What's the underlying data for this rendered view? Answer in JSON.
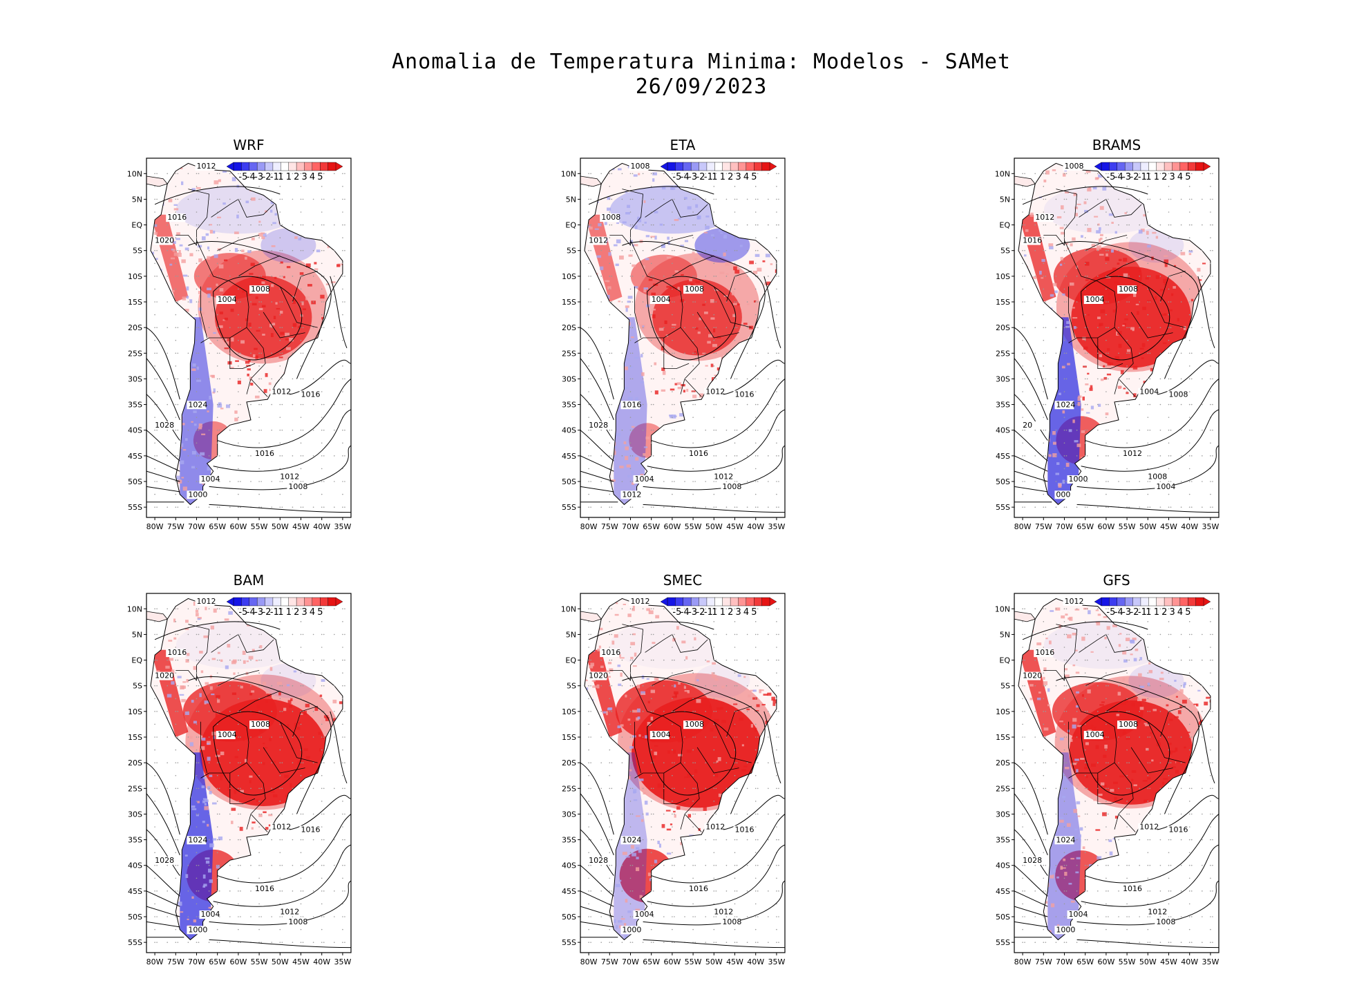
{
  "title": {
    "line1": "Anomalia de Temperatura Minima: Modelos - SAMet",
    "line2": "26/09/2023"
  },
  "axes": {
    "lat_labels": [
      "10N",
      "5N",
      "EQ",
      "5S",
      "10S",
      "15S",
      "20S",
      "25S",
      "30S",
      "35S",
      "40S",
      "45S",
      "50S",
      "55S"
    ],
    "lon_labels": [
      "80W",
      "75W",
      "70W",
      "65W",
      "60W",
      "55W",
      "50W",
      "45W",
      "40W",
      "35W"
    ]
  },
  "colorbar": {
    "labels": [
      "-5",
      "-4",
      "-3",
      "-2",
      "-1",
      "1",
      "1",
      "2",
      "3",
      "4",
      "5"
    ],
    "colors": [
      "#1515e6",
      "#3d3df0",
      "#6666f2",
      "#9a9af5",
      "#c8c8fa",
      "#eeeeff",
      "#ffffff",
      "#ffe5e5",
      "#ffc0c0",
      "#ff9494",
      "#ff6464",
      "#f23a3a",
      "#e61414"
    ]
  },
  "colors": {
    "anomaly_positive": "#e82020",
    "anomaly_positive_light": "#f4a0a0",
    "anomaly_negative": "#2a2ae0",
    "anomaly_negative_light": "#a8a8f0",
    "land_outline": "#000000",
    "grid_dots": "#9a9a9a"
  },
  "panels": [
    {
      "name": "WRF",
      "warm": 0.55,
      "cold_north": 0.45,
      "cold_andes": 0.7,
      "labels": {
        "north": "1012",
        "n2": "1016",
        "andes_high": "1020",
        "interior": "1008",
        "center": "1004",
        "south_west": "1024",
        "south_west2": "1028",
        "south_coast": "1016",
        "south_coast2": "1012",
        "far_south": "1008",
        "far_south2": "1004",
        "far_south3": "1000",
        "atl": "1012",
        "atl2": "1016"
      }
    },
    {
      "name": "ETA",
      "warm": 0.45,
      "cold_north": 0.9,
      "cold_andes": 0.5,
      "labels": {
        "north": "1008",
        "n2": "1008",
        "andes_high": "1012",
        "interior": "1008",
        "center": "1004",
        "south_west": "1016",
        "south_west2": "1028",
        "south_coast": "1016",
        "south_coast2": "1012",
        "far_south": "1008",
        "far_south2": "1004",
        "far_south3": "1012",
        "atl": "1012",
        "atl2": "1016"
      }
    },
    {
      "name": "BRAMS",
      "warm": 0.85,
      "cold_north": 0.2,
      "cold_andes": 0.95,
      "labels": {
        "north": "1008",
        "n2": "1012",
        "andes_high": "1016",
        "interior": "1008",
        "center": "1004",
        "south_west": "1024",
        "south_west2": "20",
        "south_coast": "1012",
        "south_coast2": "1008",
        "far_south": "1004",
        "far_south2": "1000",
        "far_south3": "000",
        "atl": "1004",
        "atl2": "1008"
      }
    },
    {
      "name": "BAM",
      "warm": 0.95,
      "cold_north": 0.15,
      "cold_andes": 0.95,
      "labels": {
        "north": "1012",
        "n2": "1016",
        "andes_high": "1020",
        "interior": "1008",
        "center": "1004",
        "south_west": "1024",
        "south_west2": "1028",
        "south_coast": "1016",
        "south_coast2": "1012",
        "far_south": "1008",
        "far_south2": "1004",
        "far_south3": "1000",
        "atl": "1012",
        "atl2": "1016"
      }
    },
    {
      "name": "SMEC",
      "warm": 1.0,
      "cold_north": 0.1,
      "cold_andes": 0.4,
      "labels": {
        "north": "1012",
        "n2": "1016",
        "andes_high": "1020",
        "interior": "1008",
        "center": "1004",
        "south_west": "1024",
        "south_west2": "1028",
        "south_coast": "1016",
        "south_coast2": "1012",
        "far_south": "1008",
        "far_south2": "1004",
        "far_south3": "1000",
        "atl": "1012",
        "atl2": "1016"
      }
    },
    {
      "name": "GFS",
      "warm": 0.9,
      "cold_north": 0.2,
      "cold_andes": 0.55,
      "labels": {
        "north": "1012",
        "n2": "1016",
        "andes_high": "1020",
        "interior": "1008",
        "center": "1004",
        "south_west": "1024",
        "south_west2": "1028",
        "south_coast": "1016",
        "south_coast2": "1012",
        "far_south": "1008",
        "far_south2": "1004",
        "far_south3": "1000",
        "atl": "1012",
        "atl2": "1016"
      }
    }
  ]
}
